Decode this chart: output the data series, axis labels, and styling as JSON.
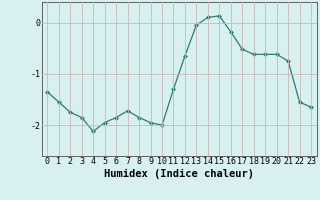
{
  "x": [
    0,
    1,
    2,
    3,
    4,
    5,
    6,
    7,
    8,
    9,
    10,
    11,
    12,
    13,
    14,
    15,
    16,
    17,
    18,
    19,
    20,
    21,
    22,
    23
  ],
  "y": [
    -1.35,
    -1.55,
    -1.75,
    -1.85,
    -2.12,
    -1.95,
    -1.85,
    -1.72,
    -1.85,
    -1.95,
    -2.0,
    -1.3,
    -0.65,
    -0.05,
    0.1,
    0.13,
    -0.18,
    -0.52,
    -0.62,
    -0.62,
    -0.62,
    -0.75,
    -1.55,
    -1.65
  ],
  "xlabel": "Humidex (Indice chaleur)",
  "xlim": [
    -0.5,
    23.5
  ],
  "ylim": [
    -2.6,
    0.4
  ],
  "yticks": [
    -2,
    -1,
    0
  ],
  "ytick_labels": [
    "-2",
    "-1",
    "0"
  ],
  "xticks": [
    0,
    1,
    2,
    3,
    4,
    5,
    6,
    7,
    8,
    9,
    10,
    11,
    12,
    13,
    14,
    15,
    16,
    17,
    18,
    19,
    20,
    21,
    22,
    23
  ],
  "line_color": "#2e7d6e",
  "marker": "D",
  "marker_size": 2.0,
  "bg_color": "#d8f0f0",
  "grid_color": "#c8b8b8",
  "xlabel_fontsize": 7.5,
  "tick_fontsize": 6.0,
  "linewidth": 0.9
}
